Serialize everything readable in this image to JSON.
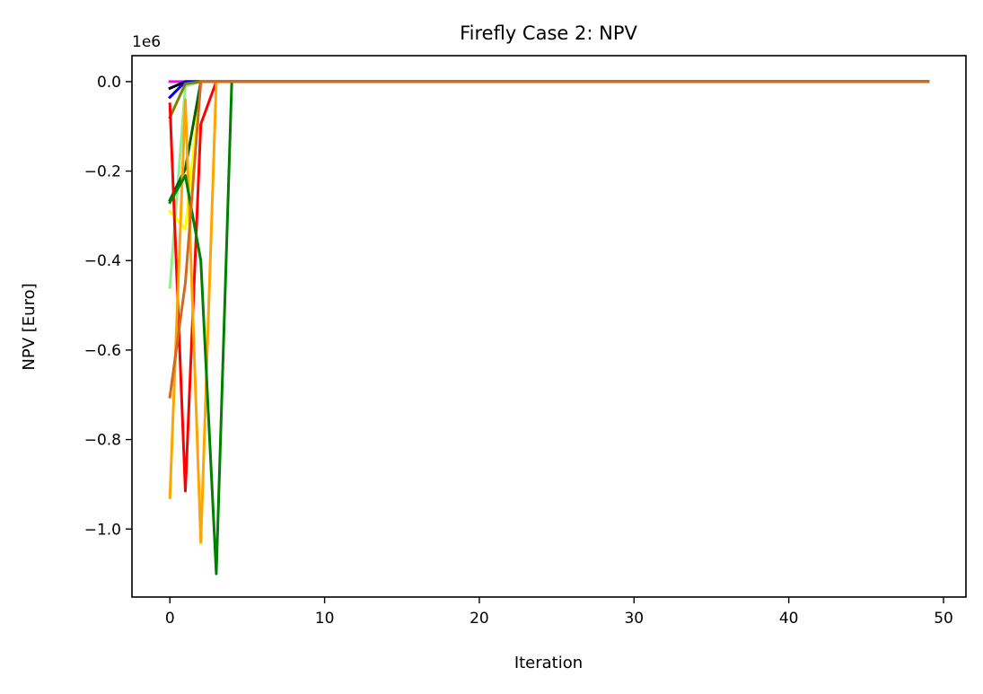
{
  "chart_data": {
    "type": "line",
    "title": "Firefly Case 2: NPV",
    "xlabel": "Iteration",
    "ylabel": "NPV [Euro]",
    "y_offset_label": "1e6",
    "xlim": [
      -2.45,
      51.45
    ],
    "ylim": [
      -1.152,
      0.058
    ],
    "y_scale_factor": 1000000,
    "xticks": [
      0,
      10,
      20,
      30,
      40,
      50
    ],
    "xtick_labels": [
      "0",
      "10",
      "20",
      "30",
      "40",
      "50"
    ],
    "yticks": [
      0.0,
      -0.2,
      -0.4,
      -0.6,
      -0.8,
      -1.0
    ],
    "ytick_labels": [
      "0.0",
      "−0.2",
      "−0.4",
      "−0.6",
      "−0.8",
      "−1.0"
    ],
    "grid": false,
    "final_iteration": 49,
    "final_value": 0.0,
    "series": [
      {
        "color": "#ff00ff",
        "points": [
          [
            0,
            0.0
          ],
          [
            1,
            0.0
          ]
        ]
      },
      {
        "color": "#000000",
        "points": [
          [
            0,
            -0.015
          ],
          [
            1,
            0.0
          ]
        ]
      },
      {
        "color": "#0000ff",
        "points": [
          [
            0,
            -0.035
          ],
          [
            1,
            0.0
          ]
        ]
      },
      {
        "color": "#90ee90",
        "points": [
          [
            0,
            -0.46
          ],
          [
            1,
            -0.01
          ],
          [
            2,
            0.0
          ]
        ]
      },
      {
        "color": "#ffff00",
        "points": [
          [
            0,
            -0.29
          ],
          [
            1,
            -0.33
          ],
          [
            2,
            0.0
          ]
        ]
      },
      {
        "color": "#006400",
        "points": [
          [
            0,
            -0.265
          ],
          [
            1,
            -0.195
          ],
          [
            2,
            0.0
          ]
        ]
      },
      {
        "color": "#808000",
        "points": [
          [
            0,
            -0.08
          ],
          [
            1,
            -0.005
          ],
          [
            2,
            0.0
          ]
        ]
      },
      {
        "color": "#ff0000",
        "points": [
          [
            0,
            -0.05
          ],
          [
            1,
            -0.915
          ],
          [
            2,
            -0.095
          ],
          [
            3,
            0.0
          ]
        ]
      },
      {
        "color": "#ffa500",
        "points": [
          [
            0,
            -0.93
          ],
          [
            1,
            -0.04
          ],
          [
            2,
            -1.03
          ],
          [
            3,
            0.0
          ]
        ]
      },
      {
        "color": "#008000",
        "points": [
          [
            0,
            -0.27
          ],
          [
            1,
            -0.21
          ],
          [
            2,
            -0.4
          ],
          [
            3,
            -1.1
          ],
          [
            4,
            0.0
          ]
        ]
      },
      {
        "color": "#d2691e",
        "points": [
          [
            0,
            -0.705
          ],
          [
            1,
            -0.45
          ],
          [
            2,
            0.0
          ]
        ]
      }
    ]
  }
}
